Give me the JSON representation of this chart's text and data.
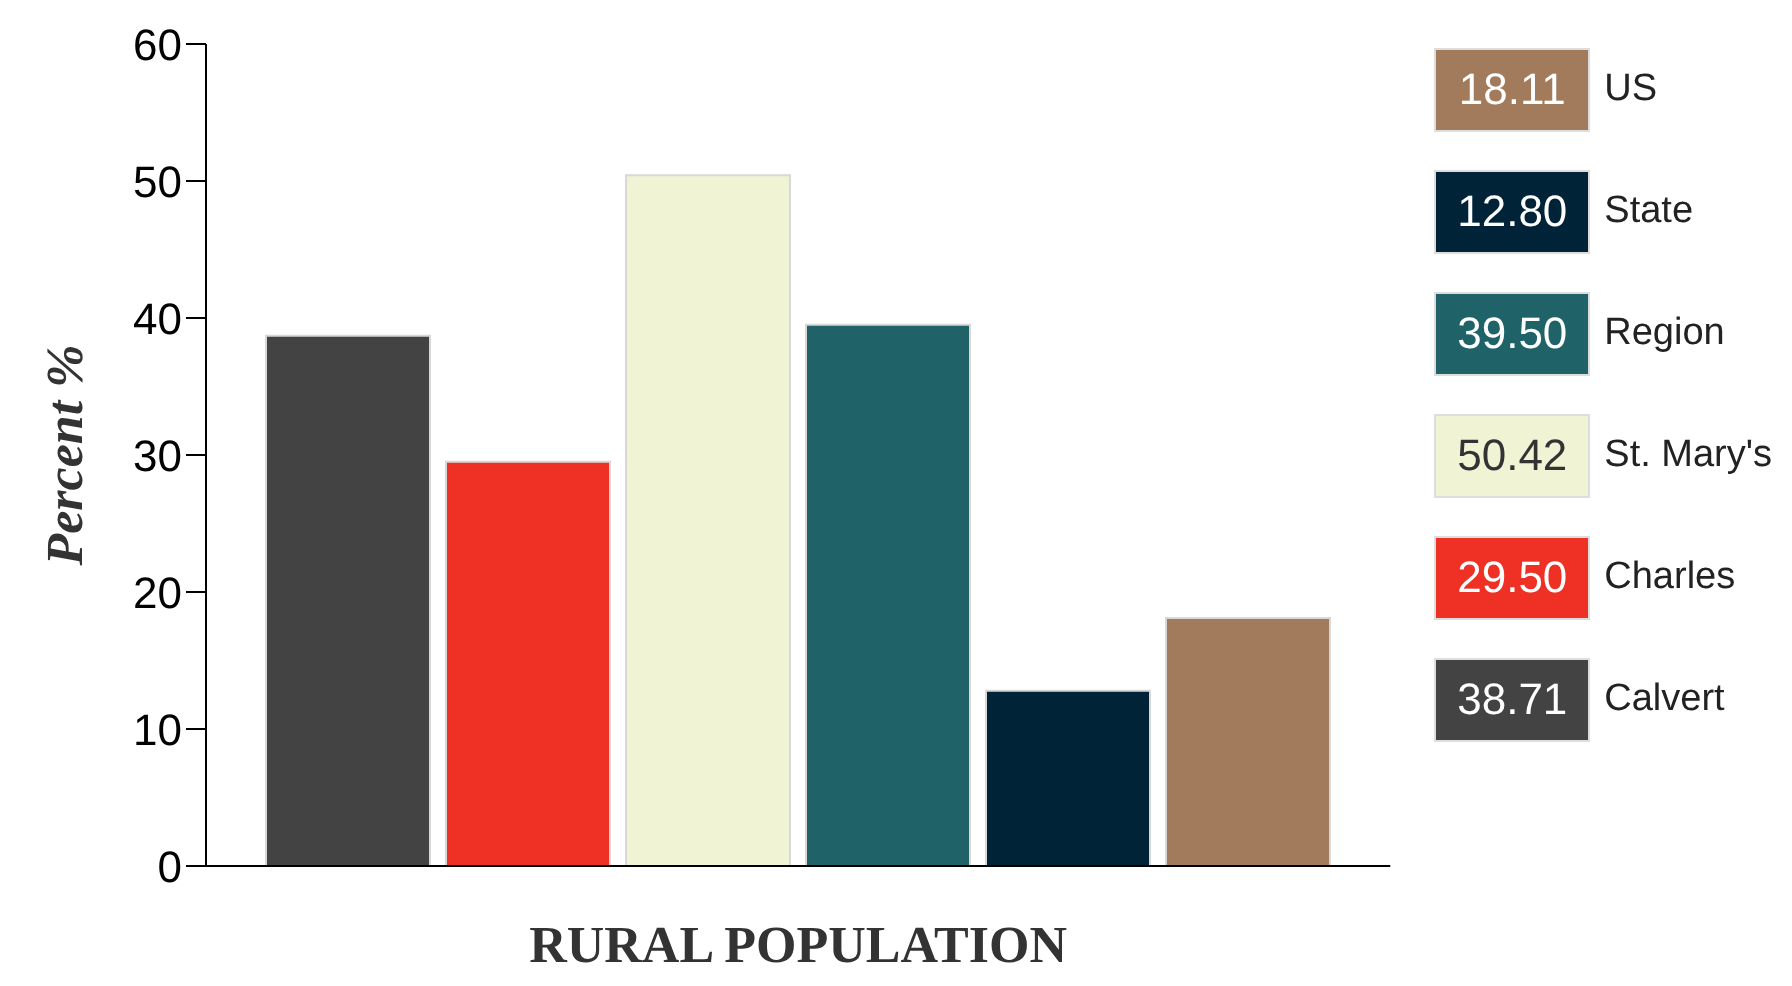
{
  "chart_data": {
    "type": "bar",
    "xlabel": "RURAL POPULATION",
    "ylabel": "Percent %",
    "categories": [
      null
    ],
    "series": [
      {
        "name": "Calvert",
        "color": "#434343",
        "values": [
          38.71
        ]
      },
      {
        "name": "Charles",
        "color": "#ee3124",
        "values": [
          29.5
        ]
      },
      {
        "name": "St. Mary's",
        "color": "#f0f4d4",
        "values": [
          50.42
        ]
      },
      {
        "name": "Region",
        "color": "#1f6369",
        "values": [
          39.5
        ]
      },
      {
        "name": "State",
        "color": "#002337",
        "values": [
          12.8
        ]
      },
      {
        "name": "US",
        "color": "#a27b5c",
        "values": [
          18.11
        ]
      }
    ],
    "ylim": [
      0,
      60
    ],
    "yticks": [
      0,
      10,
      20,
      30,
      40,
      50,
      60
    ],
    "grid": false,
    "legend": "right",
    "annotations": [
      "38.71",
      "29.50",
      "50.42",
      "39.50",
      "12.80",
      "18.11"
    ]
  }
}
